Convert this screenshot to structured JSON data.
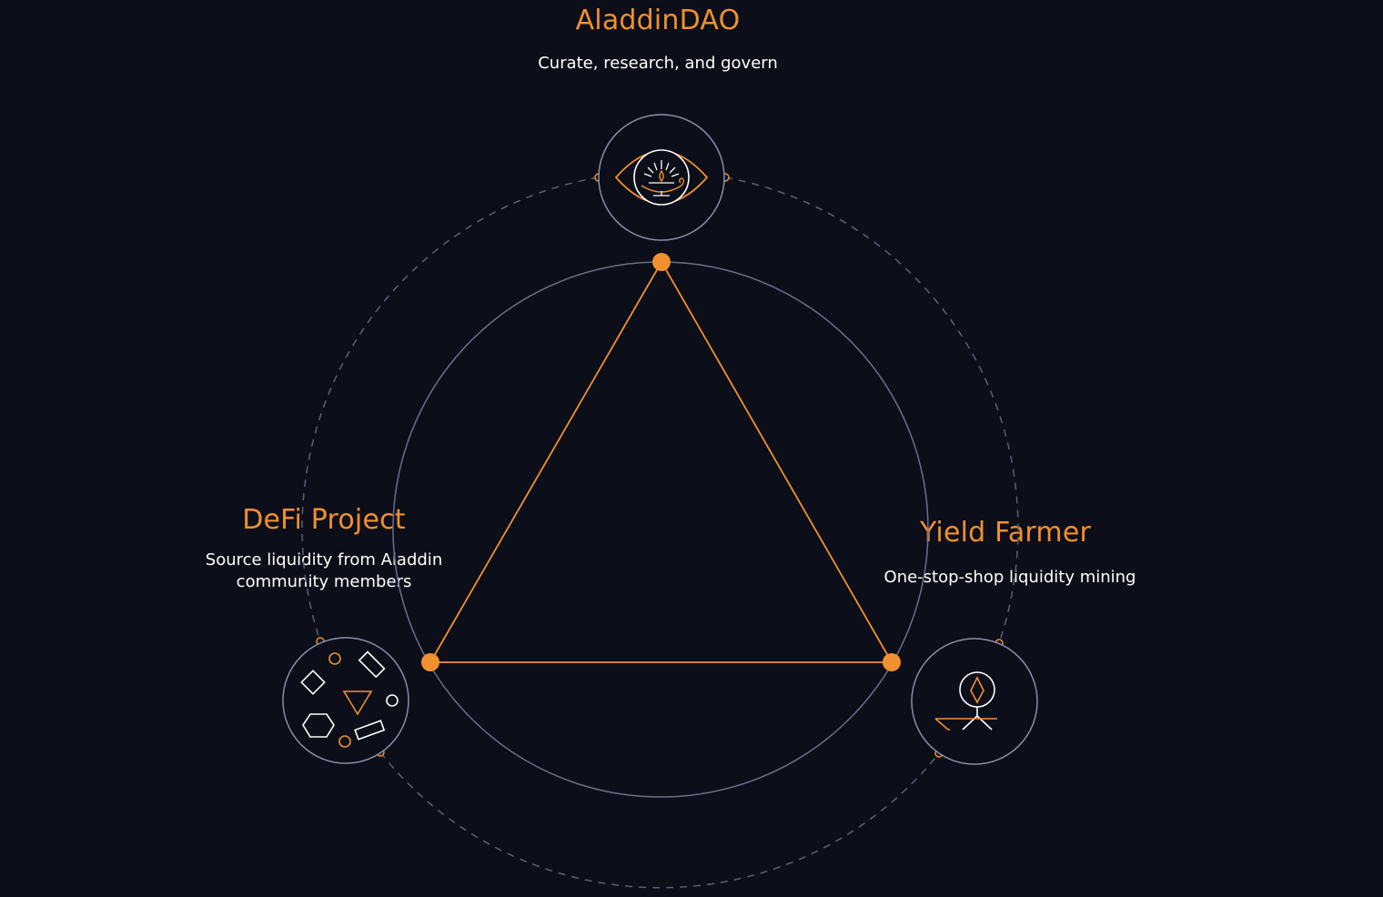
{
  "colors": {
    "background": "#0c0e1a",
    "accent": "#f0902f",
    "ring": "#6b7088",
    "dashed_ring": "#5b6076",
    "text": "#ffffff"
  },
  "nodes": {
    "aladdin_dao": {
      "title": "AladdinDAO",
      "description": "Curate, research, and govern",
      "icon": "eye-lamp-icon"
    },
    "defi_project": {
      "title": "DeFi Project",
      "description_line1": "Source liquidity from Aladdin",
      "description_line2": "community members",
      "icon": "shapes-icon"
    },
    "yield_farmer": {
      "title": "Yield Farmer",
      "description": "One-stop-shop liquidity mining",
      "icon": "farmer-diamond-icon"
    }
  }
}
